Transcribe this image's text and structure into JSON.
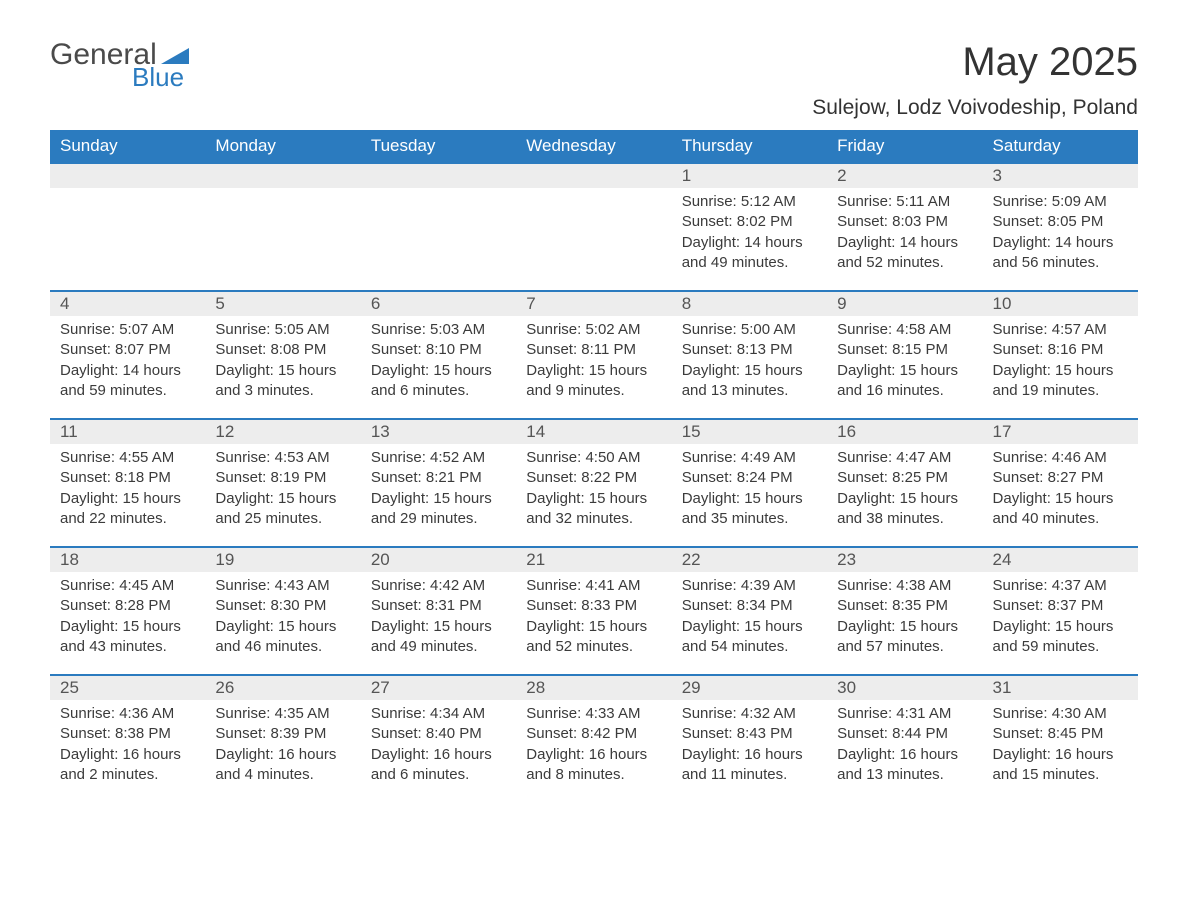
{
  "brand": {
    "word1": "General",
    "word2": "Blue",
    "accent_color": "#2b7bbf"
  },
  "title": "May 2025",
  "location": "Sulejow, Lodz Voivodeship, Poland",
  "colors": {
    "header_bg": "#2b7bbf",
    "header_text": "#ffffff",
    "daynum_bg": "#ededed",
    "row_divider": "#2b7bbf",
    "body_text": "#3b3b3b",
    "page_bg": "#ffffff"
  },
  "typography": {
    "title_size_pt": 30,
    "header_size_pt": 13,
    "body_size_pt": 11
  },
  "layout": {
    "columns": 7,
    "rows": 5,
    "first_weekday_index": 4
  },
  "day_labels": [
    "Sunday",
    "Monday",
    "Tuesday",
    "Wednesday",
    "Thursday",
    "Friday",
    "Saturday"
  ],
  "label_sunrise": "Sunrise: ",
  "label_sunset": "Sunset: ",
  "label_daylight": "Daylight: ",
  "days": [
    {
      "n": "1",
      "sunrise": "5:12 AM",
      "sunset": "8:02 PM",
      "daylight": "14 hours and 49 minutes."
    },
    {
      "n": "2",
      "sunrise": "5:11 AM",
      "sunset": "8:03 PM",
      "daylight": "14 hours and 52 minutes."
    },
    {
      "n": "3",
      "sunrise": "5:09 AM",
      "sunset": "8:05 PM",
      "daylight": "14 hours and 56 minutes."
    },
    {
      "n": "4",
      "sunrise": "5:07 AM",
      "sunset": "8:07 PM",
      "daylight": "14 hours and 59 minutes."
    },
    {
      "n": "5",
      "sunrise": "5:05 AM",
      "sunset": "8:08 PM",
      "daylight": "15 hours and 3 minutes."
    },
    {
      "n": "6",
      "sunrise": "5:03 AM",
      "sunset": "8:10 PM",
      "daylight": "15 hours and 6 minutes."
    },
    {
      "n": "7",
      "sunrise": "5:02 AM",
      "sunset": "8:11 PM",
      "daylight": "15 hours and 9 minutes."
    },
    {
      "n": "8",
      "sunrise": "5:00 AM",
      "sunset": "8:13 PM",
      "daylight": "15 hours and 13 minutes."
    },
    {
      "n": "9",
      "sunrise": "4:58 AM",
      "sunset": "8:15 PM",
      "daylight": "15 hours and 16 minutes."
    },
    {
      "n": "10",
      "sunrise": "4:57 AM",
      "sunset": "8:16 PM",
      "daylight": "15 hours and 19 minutes."
    },
    {
      "n": "11",
      "sunrise": "4:55 AM",
      "sunset": "8:18 PM",
      "daylight": "15 hours and 22 minutes."
    },
    {
      "n": "12",
      "sunrise": "4:53 AM",
      "sunset": "8:19 PM",
      "daylight": "15 hours and 25 minutes."
    },
    {
      "n": "13",
      "sunrise": "4:52 AM",
      "sunset": "8:21 PM",
      "daylight": "15 hours and 29 minutes."
    },
    {
      "n": "14",
      "sunrise": "4:50 AM",
      "sunset": "8:22 PM",
      "daylight": "15 hours and 32 minutes."
    },
    {
      "n": "15",
      "sunrise": "4:49 AM",
      "sunset": "8:24 PM",
      "daylight": "15 hours and 35 minutes."
    },
    {
      "n": "16",
      "sunrise": "4:47 AM",
      "sunset": "8:25 PM",
      "daylight": "15 hours and 38 minutes."
    },
    {
      "n": "17",
      "sunrise": "4:46 AM",
      "sunset": "8:27 PM",
      "daylight": "15 hours and 40 minutes."
    },
    {
      "n": "18",
      "sunrise": "4:45 AM",
      "sunset": "8:28 PM",
      "daylight": "15 hours and 43 minutes."
    },
    {
      "n": "19",
      "sunrise": "4:43 AM",
      "sunset": "8:30 PM",
      "daylight": "15 hours and 46 minutes."
    },
    {
      "n": "20",
      "sunrise": "4:42 AM",
      "sunset": "8:31 PM",
      "daylight": "15 hours and 49 minutes."
    },
    {
      "n": "21",
      "sunrise": "4:41 AM",
      "sunset": "8:33 PM",
      "daylight": "15 hours and 52 minutes."
    },
    {
      "n": "22",
      "sunrise": "4:39 AM",
      "sunset": "8:34 PM",
      "daylight": "15 hours and 54 minutes."
    },
    {
      "n": "23",
      "sunrise": "4:38 AM",
      "sunset": "8:35 PM",
      "daylight": "15 hours and 57 minutes."
    },
    {
      "n": "24",
      "sunrise": "4:37 AM",
      "sunset": "8:37 PM",
      "daylight": "15 hours and 59 minutes."
    },
    {
      "n": "25",
      "sunrise": "4:36 AM",
      "sunset": "8:38 PM",
      "daylight": "16 hours and 2 minutes."
    },
    {
      "n": "26",
      "sunrise": "4:35 AM",
      "sunset": "8:39 PM",
      "daylight": "16 hours and 4 minutes."
    },
    {
      "n": "27",
      "sunrise": "4:34 AM",
      "sunset": "8:40 PM",
      "daylight": "16 hours and 6 minutes."
    },
    {
      "n": "28",
      "sunrise": "4:33 AM",
      "sunset": "8:42 PM",
      "daylight": "16 hours and 8 minutes."
    },
    {
      "n": "29",
      "sunrise": "4:32 AM",
      "sunset": "8:43 PM",
      "daylight": "16 hours and 11 minutes."
    },
    {
      "n": "30",
      "sunrise": "4:31 AM",
      "sunset": "8:44 PM",
      "daylight": "16 hours and 13 minutes."
    },
    {
      "n": "31",
      "sunrise": "4:30 AM",
      "sunset": "8:45 PM",
      "daylight": "16 hours and 15 minutes."
    }
  ]
}
